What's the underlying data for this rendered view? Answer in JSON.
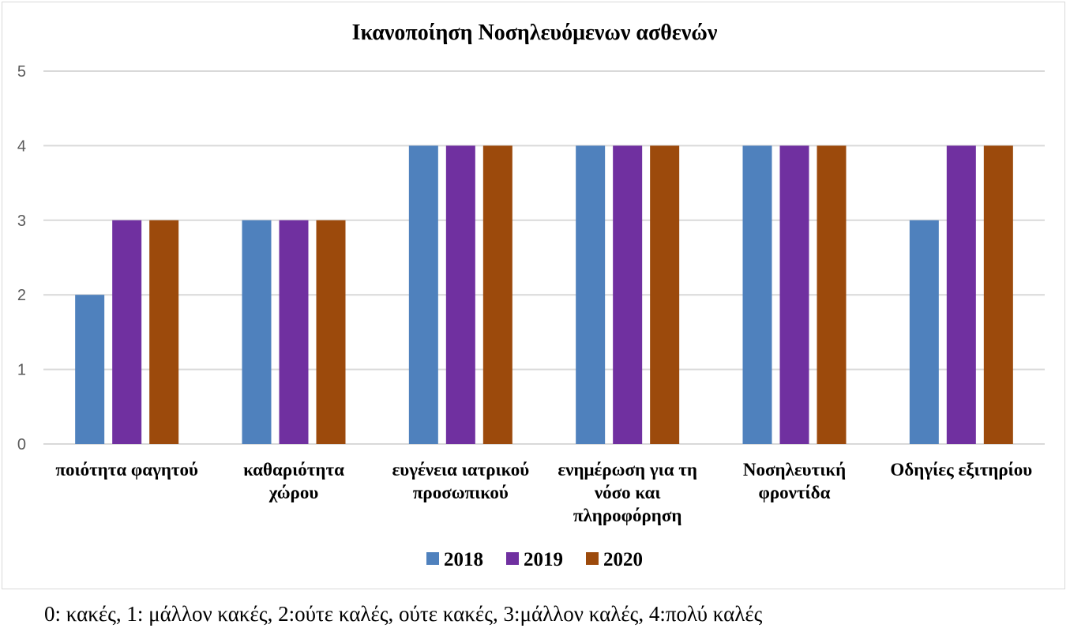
{
  "chart_data": {
    "type": "bar",
    "title": "Ικανοποίηση Νοσηλευόμενων ασθενών",
    "categories": [
      [
        "ποιότητα φαγητού"
      ],
      [
        "καθαριότητα",
        "χώρου"
      ],
      [
        "ευγένεια ιατρικού",
        "προσωπικού"
      ],
      [
        "ενημέρωση για τη",
        "νόσο και",
        "πληροφόρηση"
      ],
      [
        "Νοσηλευτική",
        "φροντίδα"
      ],
      [
        "Οδηγίες εξιτηρίου"
      ]
    ],
    "series": [
      {
        "name": "2018",
        "color": "#4F81BD",
        "values": [
          2,
          3,
          4,
          4,
          4,
          3
        ]
      },
      {
        "name": "2019",
        "color": "#7030A0",
        "values": [
          3,
          3,
          4,
          4,
          4,
          4
        ]
      },
      {
        "name": "2020",
        "color": "#9C4A0C",
        "values": [
          3,
          3,
          4,
          4,
          4,
          4
        ]
      }
    ],
    "ylim": [
      0,
      5
    ],
    "yticks": [
      "0",
      "1",
      "2",
      "3",
      "4",
      "5"
    ],
    "grid": true,
    "legend_position": "bottom"
  },
  "footnote": "0: κακές, 1: μάλλον κακές, 2:ούτε καλές, ούτε κακές, 3:μάλλον καλές, 4:πολύ καλές"
}
